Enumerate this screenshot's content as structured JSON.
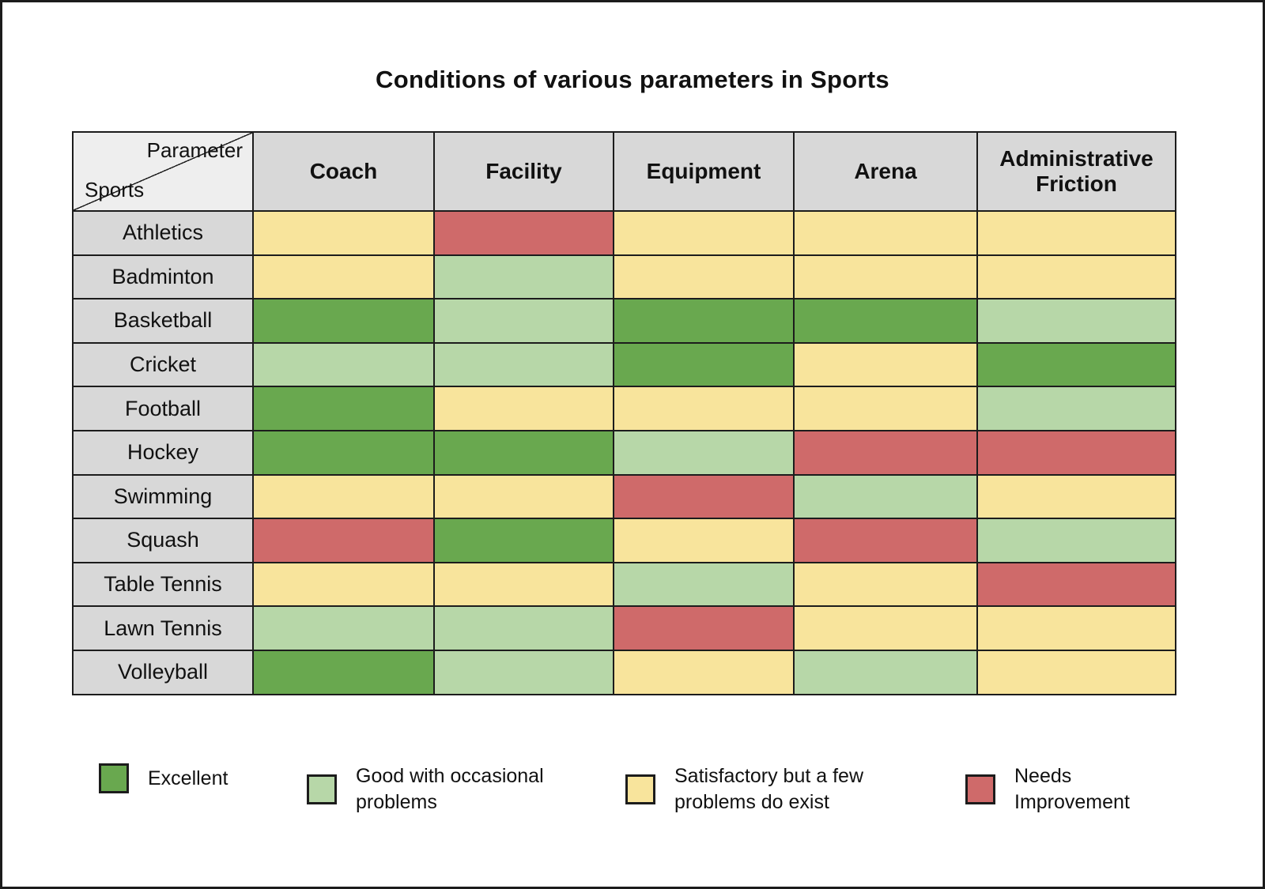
{
  "title": "Conditions of various parameters in Sports",
  "table": {
    "corner": {
      "top": "Parameter",
      "bottom": "Sports"
    },
    "columns": [
      "Coach",
      "Facility",
      "Equipment",
      "Arena",
      "Administrative Friction"
    ],
    "rows": [
      {
        "sport": "Athletics",
        "cells": [
          "satisfactory",
          "needs_improvement",
          "satisfactory",
          "satisfactory",
          "satisfactory"
        ]
      },
      {
        "sport": "Badminton",
        "cells": [
          "satisfactory",
          "good",
          "satisfactory",
          "satisfactory",
          "satisfactory"
        ]
      },
      {
        "sport": "Basketball",
        "cells": [
          "excellent",
          "good",
          "excellent",
          "excellent",
          "good"
        ]
      },
      {
        "sport": "Cricket",
        "cells": [
          "good",
          "good",
          "excellent",
          "satisfactory",
          "excellent"
        ]
      },
      {
        "sport": "Football",
        "cells": [
          "excellent",
          "satisfactory",
          "satisfactory",
          "satisfactory",
          "good"
        ]
      },
      {
        "sport": "Hockey",
        "cells": [
          "excellent",
          "excellent",
          "good",
          "needs_improvement",
          "needs_improvement"
        ]
      },
      {
        "sport": "Swimming",
        "cells": [
          "satisfactory",
          "satisfactory",
          "needs_improvement",
          "good",
          "satisfactory"
        ]
      },
      {
        "sport": "Squash",
        "cells": [
          "needs_improvement",
          "excellent",
          "satisfactory",
          "needs_improvement",
          "good"
        ]
      },
      {
        "sport": "Table Tennis",
        "cells": [
          "satisfactory",
          "satisfactory",
          "good",
          "satisfactory",
          "needs_improvement"
        ]
      },
      {
        "sport": "Lawn Tennis",
        "cells": [
          "good",
          "good",
          "needs_improvement",
          "satisfactory",
          "satisfactory"
        ]
      },
      {
        "sport": "Volleyball",
        "cells": [
          "excellent",
          "good",
          "satisfactory",
          "good",
          "satisfactory"
        ]
      }
    ]
  },
  "legend": {
    "colors": {
      "excellent": "#69a84f",
      "good": "#b7d7a8",
      "satisfactory": "#f8e49c",
      "needs_improvement": "#cf6a6a"
    },
    "items": [
      {
        "level": "excellent",
        "label": "Excellent"
      },
      {
        "level": "good",
        "label": "Good with occasional problems"
      },
      {
        "level": "satisfactory",
        "label": "Satisfactory but a few problems do exist"
      },
      {
        "level": "needs_improvement",
        "label": "Needs Improvement"
      }
    ]
  },
  "chart_data": {
    "type": "heatmap",
    "title": "Conditions of various parameters in Sports",
    "x_categories": [
      "Coach",
      "Facility",
      "Equipment",
      "Arena",
      "Administrative Friction"
    ],
    "y_categories": [
      "Athletics",
      "Badminton",
      "Basketball",
      "Cricket",
      "Football",
      "Hockey",
      "Swimming",
      "Squash",
      "Table Tennis",
      "Lawn Tennis",
      "Volleyball"
    ],
    "values": [
      [
        "satisfactory",
        "needs_improvement",
        "satisfactory",
        "satisfactory",
        "satisfactory"
      ],
      [
        "satisfactory",
        "good",
        "satisfactory",
        "satisfactory",
        "satisfactory"
      ],
      [
        "excellent",
        "good",
        "excellent",
        "excellent",
        "good"
      ],
      [
        "good",
        "good",
        "excellent",
        "satisfactory",
        "excellent"
      ],
      [
        "excellent",
        "satisfactory",
        "satisfactory",
        "satisfactory",
        "good"
      ],
      [
        "excellent",
        "excellent",
        "good",
        "needs_improvement",
        "needs_improvement"
      ],
      [
        "satisfactory",
        "satisfactory",
        "needs_improvement",
        "good",
        "satisfactory"
      ],
      [
        "needs_improvement",
        "excellent",
        "satisfactory",
        "needs_improvement",
        "good"
      ],
      [
        "satisfactory",
        "satisfactory",
        "good",
        "satisfactory",
        "needs_improvement"
      ],
      [
        "good",
        "good",
        "needs_improvement",
        "satisfactory",
        "satisfactory"
      ],
      [
        "excellent",
        "good",
        "satisfactory",
        "good",
        "satisfactory"
      ]
    ],
    "value_labels": {
      "excellent": "Excellent",
      "good": "Good with occasional problems",
      "satisfactory": "Satisfactory but a few problems do exist",
      "needs_improvement": "Needs Improvement"
    },
    "value_colors": {
      "excellent": "#69a84f",
      "good": "#b7d7a8",
      "satisfactory": "#f8e49c",
      "needs_improvement": "#cf6a6a"
    },
    "legend_position": "bottom",
    "grid": true
  }
}
